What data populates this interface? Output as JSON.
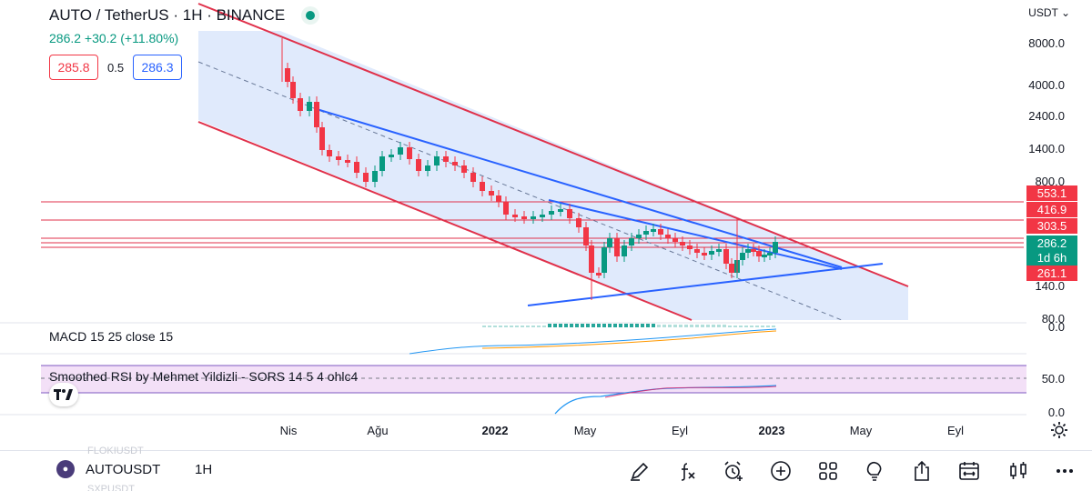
{
  "header": {
    "title": "AUTO / TetherUS · 1H · BINANCE",
    "price_change": "286.2  +30.2 (+11.80%)",
    "bid": "285.8",
    "spread": "0.5",
    "ask": "286.3"
  },
  "price_axis": {
    "currency": "USDT",
    "ticks": [
      "8000.0",
      "4000.0",
      "2400.0",
      "1400.0",
      "800.0",
      "140.0",
      "80.0"
    ],
    "badges": [
      {
        "label": "553.1",
        "color": "#f23645"
      },
      {
        "label": "416.9",
        "color": "#f23645"
      },
      {
        "label": "303.5",
        "color": "#f23645"
      },
      {
        "label": "286.2",
        "color": "#089981"
      },
      {
        "label": "1d 6h",
        "color": "#089981"
      },
      {
        "label": "261.1",
        "color": "#f23645"
      }
    ]
  },
  "macd": {
    "label": "MACD  15 25 close 15",
    "axis": "0.0"
  },
  "rsi": {
    "label": "Smoothed RSI by Mehmet Yildizli - SORS  14 5 4 ohlc4",
    "axis_upper": "50.0",
    "axis_lower": "0.0"
  },
  "time_axis": [
    "Nis",
    "Ağu",
    "2022",
    "May",
    "Eyl",
    "2023",
    "May",
    "Eyl"
  ],
  "bottom_bar": {
    "symbol": "AUTOUSDT",
    "interval": "1H",
    "ghost_top": "FLOKIUSDT",
    "ghost_bottom": "SXPUSDT",
    "tools": [
      "pencil-icon",
      "function-icon",
      "alarm-add-icon",
      "plus-circle-icon",
      "grid-icon",
      "lightbulb-icon",
      "share-icon",
      "calendar-replay-icon",
      "candles-icon",
      "more-icon"
    ]
  },
  "colors": {
    "up": "#089981",
    "down": "#f23645",
    "channel_red": "#e0314b",
    "trend_blue": "#2962ff",
    "channel_fill": "#dbe6fb"
  }
}
